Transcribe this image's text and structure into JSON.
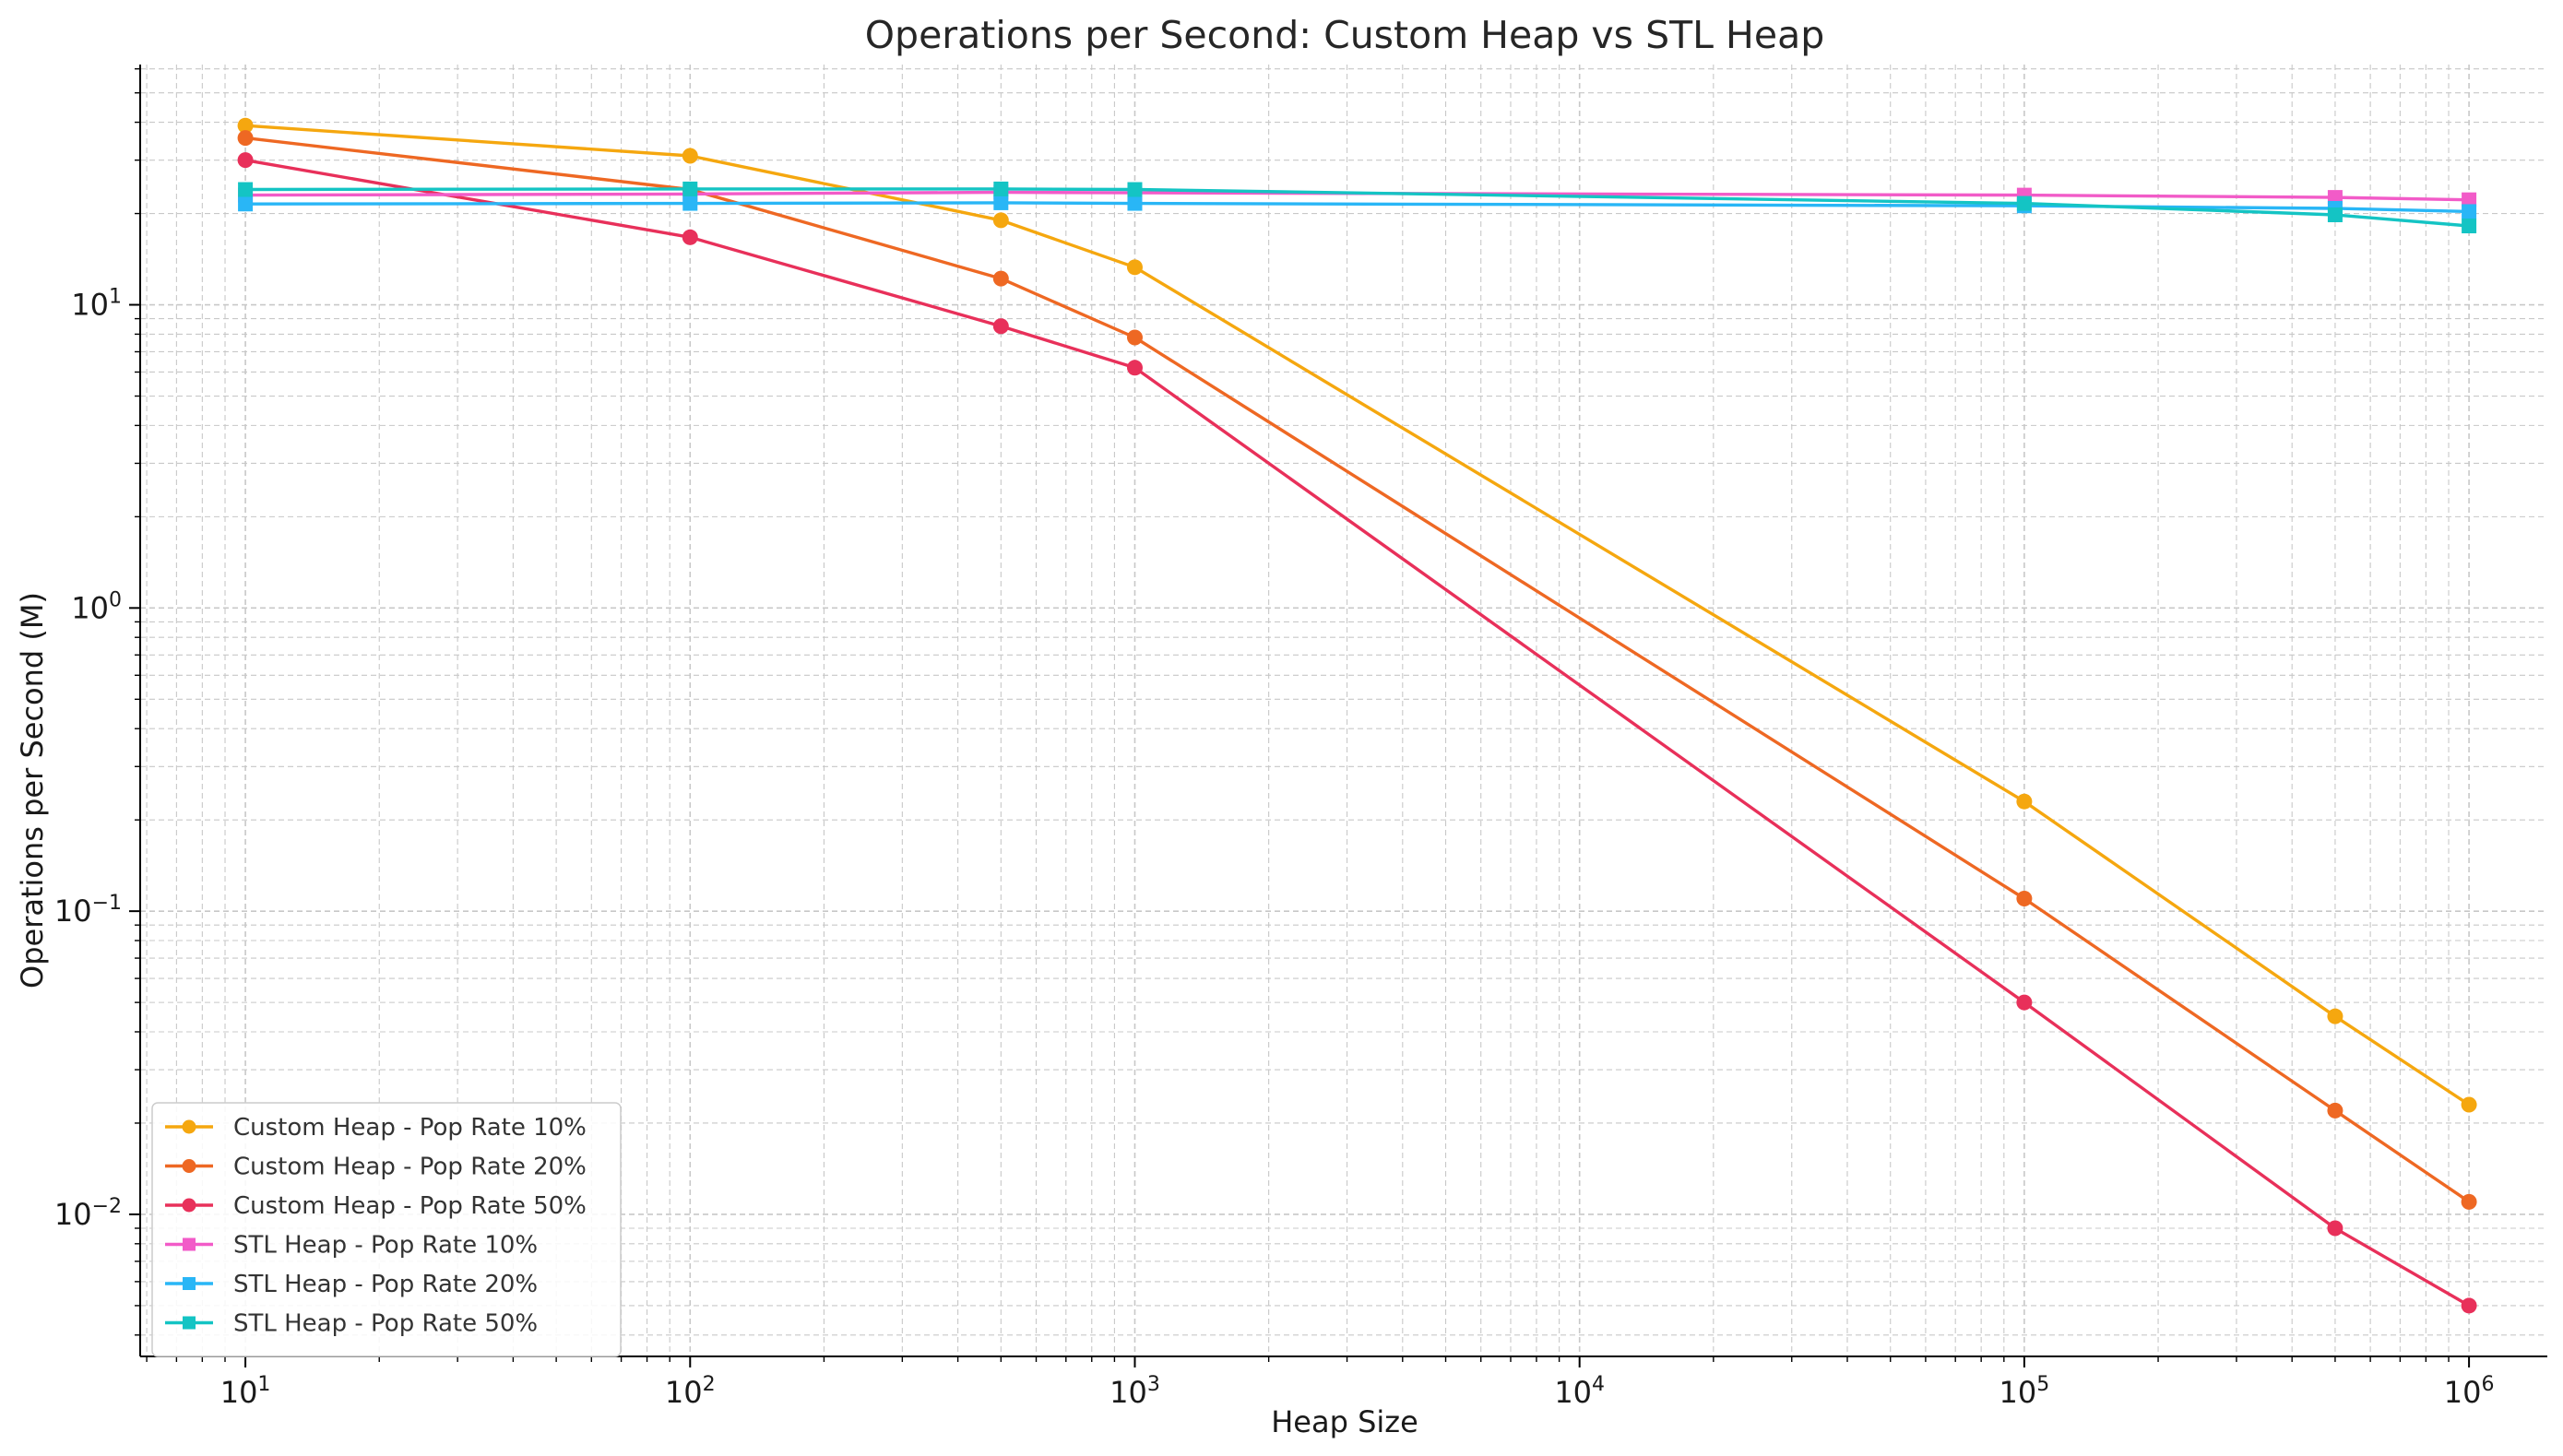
{
  "chart_data": {
    "type": "line",
    "title": "Operations per Second: Custom Heap vs STL Heap",
    "xlabel": "Heap Size",
    "ylabel": "Operations per Second (M)",
    "xscale": "log",
    "yscale": "log",
    "xlim": [
      5.8,
      1500000.0
    ],
    "ylim": [
      0.0034,
      62
    ],
    "x_ticks": [
      {
        "base": "10",
        "exp": "1",
        "value": 10
      },
      {
        "base": "10",
        "exp": "2",
        "value": 100
      },
      {
        "base": "10",
        "exp": "3",
        "value": 1000
      },
      {
        "base": "10",
        "exp": "4",
        "value": 10000
      },
      {
        "base": "10",
        "exp": "5",
        "value": 100000
      },
      {
        "base": "10",
        "exp": "6",
        "value": 1000000
      }
    ],
    "y_ticks": [
      {
        "base": "10",
        "exp": "−2",
        "value": 0.01
      },
      {
        "base": "10",
        "exp": "−1",
        "value": 0.1
      },
      {
        "base": "10",
        "exp": "0",
        "value": 1
      },
      {
        "base": "10",
        "exp": "1",
        "value": 10
      }
    ],
    "grid": true,
    "legend_position": "bottom-left",
    "x": [
      10,
      100,
      500,
      1000,
      100000,
      500000,
      1000000
    ],
    "series": [
      {
        "name": "Custom Heap - Pop Rate 10%",
        "color": "#f5a70f",
        "marker": "circle",
        "values": [
          39,
          31,
          19,
          13.3,
          0.23,
          0.045,
          0.023
        ]
      },
      {
        "name": "Custom Heap - Pop Rate 20%",
        "color": "#ee6823",
        "marker": "circle",
        "values": [
          35.5,
          24,
          12.2,
          7.8,
          0.11,
          0.022,
          0.011
        ]
      },
      {
        "name": "Custom Heap - Pop Rate 50%",
        "color": "#e8305a",
        "marker": "circle",
        "values": [
          30,
          16.7,
          8.5,
          6.2,
          0.05,
          0.009,
          0.005
        ]
      },
      {
        "name": "STL Heap - Pop Rate 10%",
        "color": "#f25bc8",
        "marker": "square",
        "values": [
          23,
          23.2,
          23.5,
          23.4,
          23,
          22.6,
          22.2
        ]
      },
      {
        "name": "STL Heap - Pop Rate 20%",
        "color": "#29b6f6",
        "marker": "square",
        "values": [
          21.5,
          21.6,
          21.7,
          21.6,
          21.2,
          20.8,
          20.3
        ]
      },
      {
        "name": "STL Heap - Pop Rate 50%",
        "color": "#14c4c4",
        "marker": "square",
        "values": [
          24,
          24.1,
          24.1,
          24,
          21.6,
          19.8,
          18.2
        ]
      }
    ]
  }
}
